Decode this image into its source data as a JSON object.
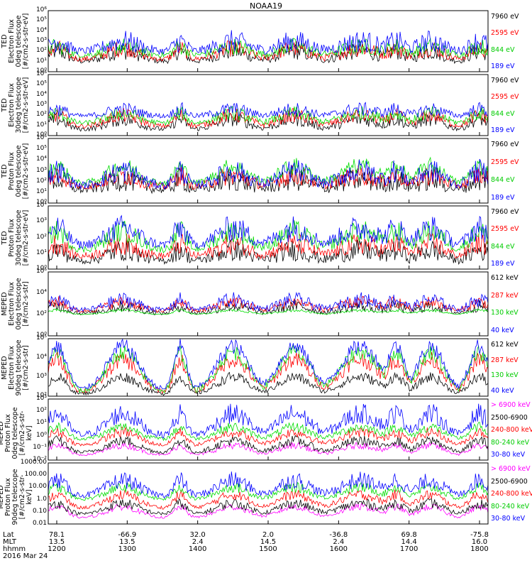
{
  "title": "NOAA19",
  "footer": {
    "row_labels": [
      "Lat",
      "MLT",
      "hhmm"
    ],
    "date": "2016 Mar 24",
    "columns": [
      {
        "lat": "78.1",
        "mlt": "13.5",
        "hhmm": "1200"
      },
      {
        "lat": "-66.9",
        "mlt": "13.5",
        "hhmm": "1300"
      },
      {
        "lat": "32.0",
        "mlt": "2.4",
        "hhmm": "1400"
      },
      {
        "lat": "2.0",
        "mlt": "14.5",
        "hhmm": "1500"
      },
      {
        "lat": "-36.8",
        "mlt": "2.4",
        "hhmm": "1600"
      },
      {
        "lat": "69.8",
        "mlt": "14.4",
        "hhmm": "1700"
      },
      {
        "lat": "-75.8",
        "mlt": "16.0",
        "hhmm": "1800"
      }
    ]
  },
  "chart_data": [
    {
      "type": "line",
      "log_y": true,
      "ylabel_lines": [
        "TED",
        "Electron Flux",
        "0deg telescope",
        "[#/cm2-s-str-eV]"
      ],
      "y_ticks": [
        "10⁰",
        "10¹",
        "10²",
        "10³",
        "10⁴",
        "10⁵",
        "10⁶"
      ],
      "ylim_exp": [
        0,
        6
      ],
      "series": [
        {
          "name": "7960 eV",
          "color": "#000000",
          "base": 1.0,
          "peak": 2.0,
          "noise": 0.6
        },
        {
          "name": "2595 eV",
          "color": "#ff0000",
          "base": 1.2,
          "peak": 2.3,
          "noise": 0.6
        },
        {
          "name": "844 eV",
          "color": "#00dd00",
          "base": 1.6,
          "peak": 2.5,
          "noise": 0.6
        },
        {
          "name": "189 eV",
          "color": "#0000ff",
          "base": 2.0,
          "peak": 3.0,
          "noise": 0.8
        }
      ]
    },
    {
      "type": "line",
      "log_y": true,
      "ylabel_lines": [
        "TED",
        "Electron Flux",
        "30deg telescope",
        "[#/cm2-s-str-eV]"
      ],
      "y_ticks": [
        "10⁰",
        "10¹",
        "10²",
        "10³",
        "10⁴",
        "10⁵",
        "10⁶"
      ],
      "ylim_exp": [
        0,
        6
      ],
      "series": [
        {
          "name": "7960 eV",
          "color": "#000000",
          "base": 0.6,
          "peak": 1.6,
          "noise": 0.5
        },
        {
          "name": "2595 eV",
          "color": "#ff0000",
          "base": 0.9,
          "peak": 2.0,
          "noise": 0.5
        },
        {
          "name": "844 eV",
          "color": "#00dd00",
          "base": 1.2,
          "peak": 2.2,
          "noise": 0.5
        },
        {
          "name": "189 eV",
          "color": "#0000ff",
          "base": 1.9,
          "peak": 2.6,
          "noise": 0.5
        }
      ]
    },
    {
      "type": "line",
      "log_y": true,
      "ylabel_lines": [
        "TED",
        "Proton Flux",
        "0deg telescope",
        "[#/cm2-s-str-eV]"
      ],
      "y_ticks": [
        "10⁰",
        "10¹",
        "10²",
        "10³",
        "10⁴",
        "10⁵",
        "10⁶"
      ],
      "ylim_exp": [
        0,
        6
      ],
      "series": [
        {
          "name": "7960 eV",
          "color": "#000000",
          "base": 1.2,
          "peak": 2.2,
          "noise": 0.8
        },
        {
          "name": "2595 eV",
          "color": "#ff0000",
          "base": 1.5,
          "peak": 2.6,
          "noise": 0.7
        },
        {
          "name": "844 eV",
          "color": "#00dd00",
          "base": 1.8,
          "peak": 3.4,
          "noise": 0.6
        },
        {
          "name": "189 eV",
          "color": "#0000ff",
          "base": 1.6,
          "peak": 3.0,
          "noise": 0.8
        }
      ]
    },
    {
      "type": "line",
      "log_y": true,
      "ylabel_lines": [
        "TED",
        "Proton Flux",
        "30deg telescope",
        "[#/cm2-s-str-eV]"
      ],
      "y_ticks": [
        "10⁰",
        "10¹",
        "10²",
        "10³",
        "10⁴"
      ],
      "ylim_exp": [
        0,
        4
      ],
      "series": [
        {
          "name": "7960 eV",
          "color": "#000000",
          "base": 0.5,
          "peak": 1.2,
          "noise": 0.5
        },
        {
          "name": "2595 eV",
          "color": "#ff0000",
          "base": 0.8,
          "peak": 1.6,
          "noise": 0.5
        },
        {
          "name": "844 eV",
          "color": "#00dd00",
          "base": 1.2,
          "peak": 2.4,
          "noise": 0.5
        },
        {
          "name": "189 eV",
          "color": "#0000ff",
          "base": 1.5,
          "peak": 2.6,
          "noise": 0.6
        }
      ]
    },
    {
      "type": "line",
      "log_y": true,
      "ylabel_lines": [
        "MEPED",
        "Electron Flux",
        "0deg telescope",
        "[#/cm2-s-str]"
      ],
      "y_ticks": [
        "10⁰",
        "10²",
        "10⁴",
        "10⁶"
      ],
      "ylim_exp": [
        0,
        6
      ],
      "series": [
        {
          "name": "612 keV",
          "color": "#000000",
          "base": 2.1,
          "peak": 2.8,
          "noise": 0.4
        },
        {
          "name": "287 keV",
          "color": "#ff0000",
          "base": 2.3,
          "peak": 3.2,
          "noise": 0.4
        },
        {
          "name": "130 keV",
          "color": "#00dd00",
          "base": 2.0,
          "peak": 2.4,
          "noise": 0.1
        },
        {
          "name": "40 keV",
          "color": "#0000ff",
          "base": 2.4,
          "peak": 3.4,
          "noise": 0.5
        }
      ]
    },
    {
      "type": "line",
      "log_y": true,
      "ylabel_lines": [
        "MEPED",
        "Electron Flux",
        "90deg telescope",
        "[#/cm2-s-str]"
      ],
      "y_ticks": [
        "10²",
        "10³",
        "10⁴",
        "10⁵"
      ],
      "ylim_exp": [
        2,
        5
      ],
      "series": [
        {
          "name": "612 keV",
          "color": "#000000",
          "base": 2.1,
          "peak": 3.0,
          "noise": 0.2
        },
        {
          "name": "287 keV",
          "color": "#ff0000",
          "base": 2.2,
          "peak": 3.9,
          "noise": 0.3
        },
        {
          "name": "130 keV",
          "color": "#00dd00",
          "base": 2.2,
          "peak": 4.3,
          "noise": 0.3
        },
        {
          "name": "40 keV",
          "color": "#0000ff",
          "base": 2.3,
          "peak": 4.6,
          "noise": 0.3
        }
      ]
    },
    {
      "type": "line",
      "log_y": true,
      "ylabel_lines": [
        "MEPED",
        "Proton Flux",
        "0deg telescope",
        "[#/cm2-s-str-keV]"
      ],
      "y_ticks": [
        "10⁻²",
        "10⁻¹",
        "10⁰",
        "10¹",
        "10²",
        "10³"
      ],
      "ylim_exp": [
        -2,
        3
      ],
      "series": [
        {
          "name": "> 6900 keV",
          "color": "#ff00ff",
          "base": -1.6,
          "peak": -0.8,
          "noise": 0.2
        },
        {
          "name": "2500-6900",
          "color": "#000000",
          "base": -1.4,
          "peak": -0.4,
          "noise": 0.3
        },
        {
          "name": "240-800 keV",
          "color": "#ff0000",
          "base": -0.8,
          "peak": 0.3,
          "noise": 0.3
        },
        {
          "name": "80-240 keV",
          "color": "#00dd00",
          "base": -0.3,
          "peak": 0.7,
          "noise": 0.3
        },
        {
          "name": "30-80 keV",
          "color": "#0000ff",
          "base": 0.0,
          "peak": 1.8,
          "noise": 0.6
        }
      ]
    },
    {
      "type": "line",
      "log_y": true,
      "ylabel_lines": [
        "MEPED",
        "Proton Flux",
        "90deg telescope",
        "[#/cm2-s-str-keV]"
      ],
      "y_ticks": [
        "0.01",
        "0.10",
        "1.0",
        "10.00",
        "100.00",
        "1000.00"
      ],
      "ylim_exp": [
        -2,
        3
      ],
      "series": [
        {
          "name": "> 6900 keV",
          "color": "#ff00ff",
          "base": -1.5,
          "peak": -0.6,
          "noise": 0.2
        },
        {
          "name": "2500-6900",
          "color": "#000000",
          "base": -1.2,
          "peak": -0.3,
          "noise": 0.3
        },
        {
          "name": "240-800 keV",
          "color": "#ff0000",
          "base": -0.7,
          "peak": 0.4,
          "noise": 0.3
        },
        {
          "name": "80-240 keV",
          "color": "#00dd00",
          "base": 0.0,
          "peak": 1.0,
          "noise": 0.3
        },
        {
          "name": "30-80 keV",
          "color": "#0000ff",
          "base": 0.3,
          "peak": 1.6,
          "noise": 0.5
        }
      ]
    }
  ]
}
